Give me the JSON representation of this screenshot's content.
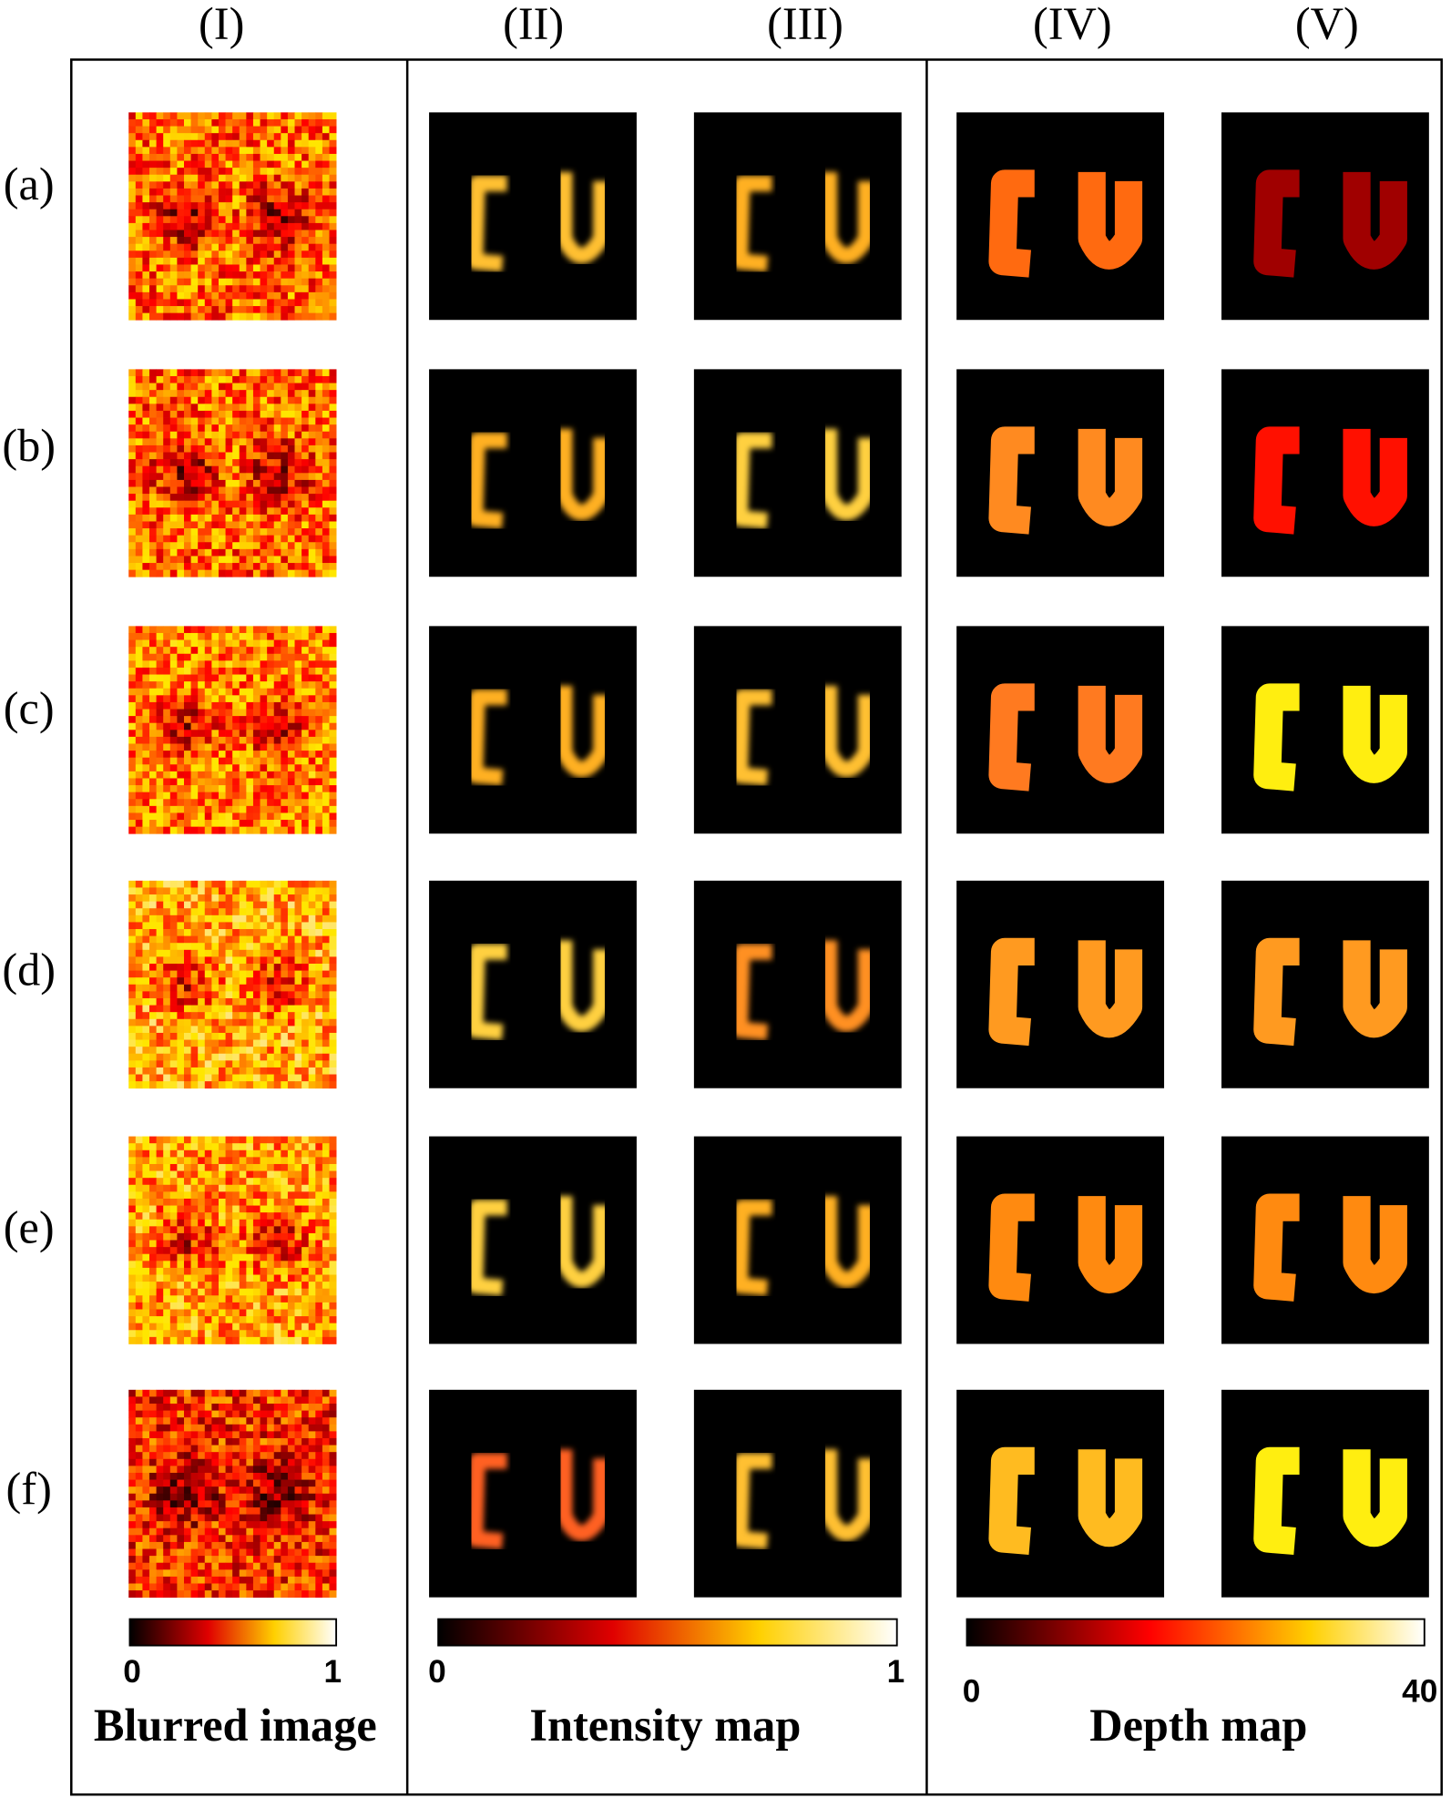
{
  "column_headers": [
    "(I)",
    "(II)",
    "(III)",
    "(IV)",
    "(V)"
  ],
  "row_labels": [
    "(a)",
    "(b)",
    "(c)",
    "(d)",
    "(e)",
    "(f)"
  ],
  "colorbars": [
    {
      "title": "Blurred image",
      "ticks": [
        0,
        1
      ]
    },
    {
      "title": "Intensity map",
      "ticks": [
        0,
        1
      ]
    },
    {
      "title": "Depth map",
      "ticks": [
        0,
        40
      ]
    }
  ]
}
